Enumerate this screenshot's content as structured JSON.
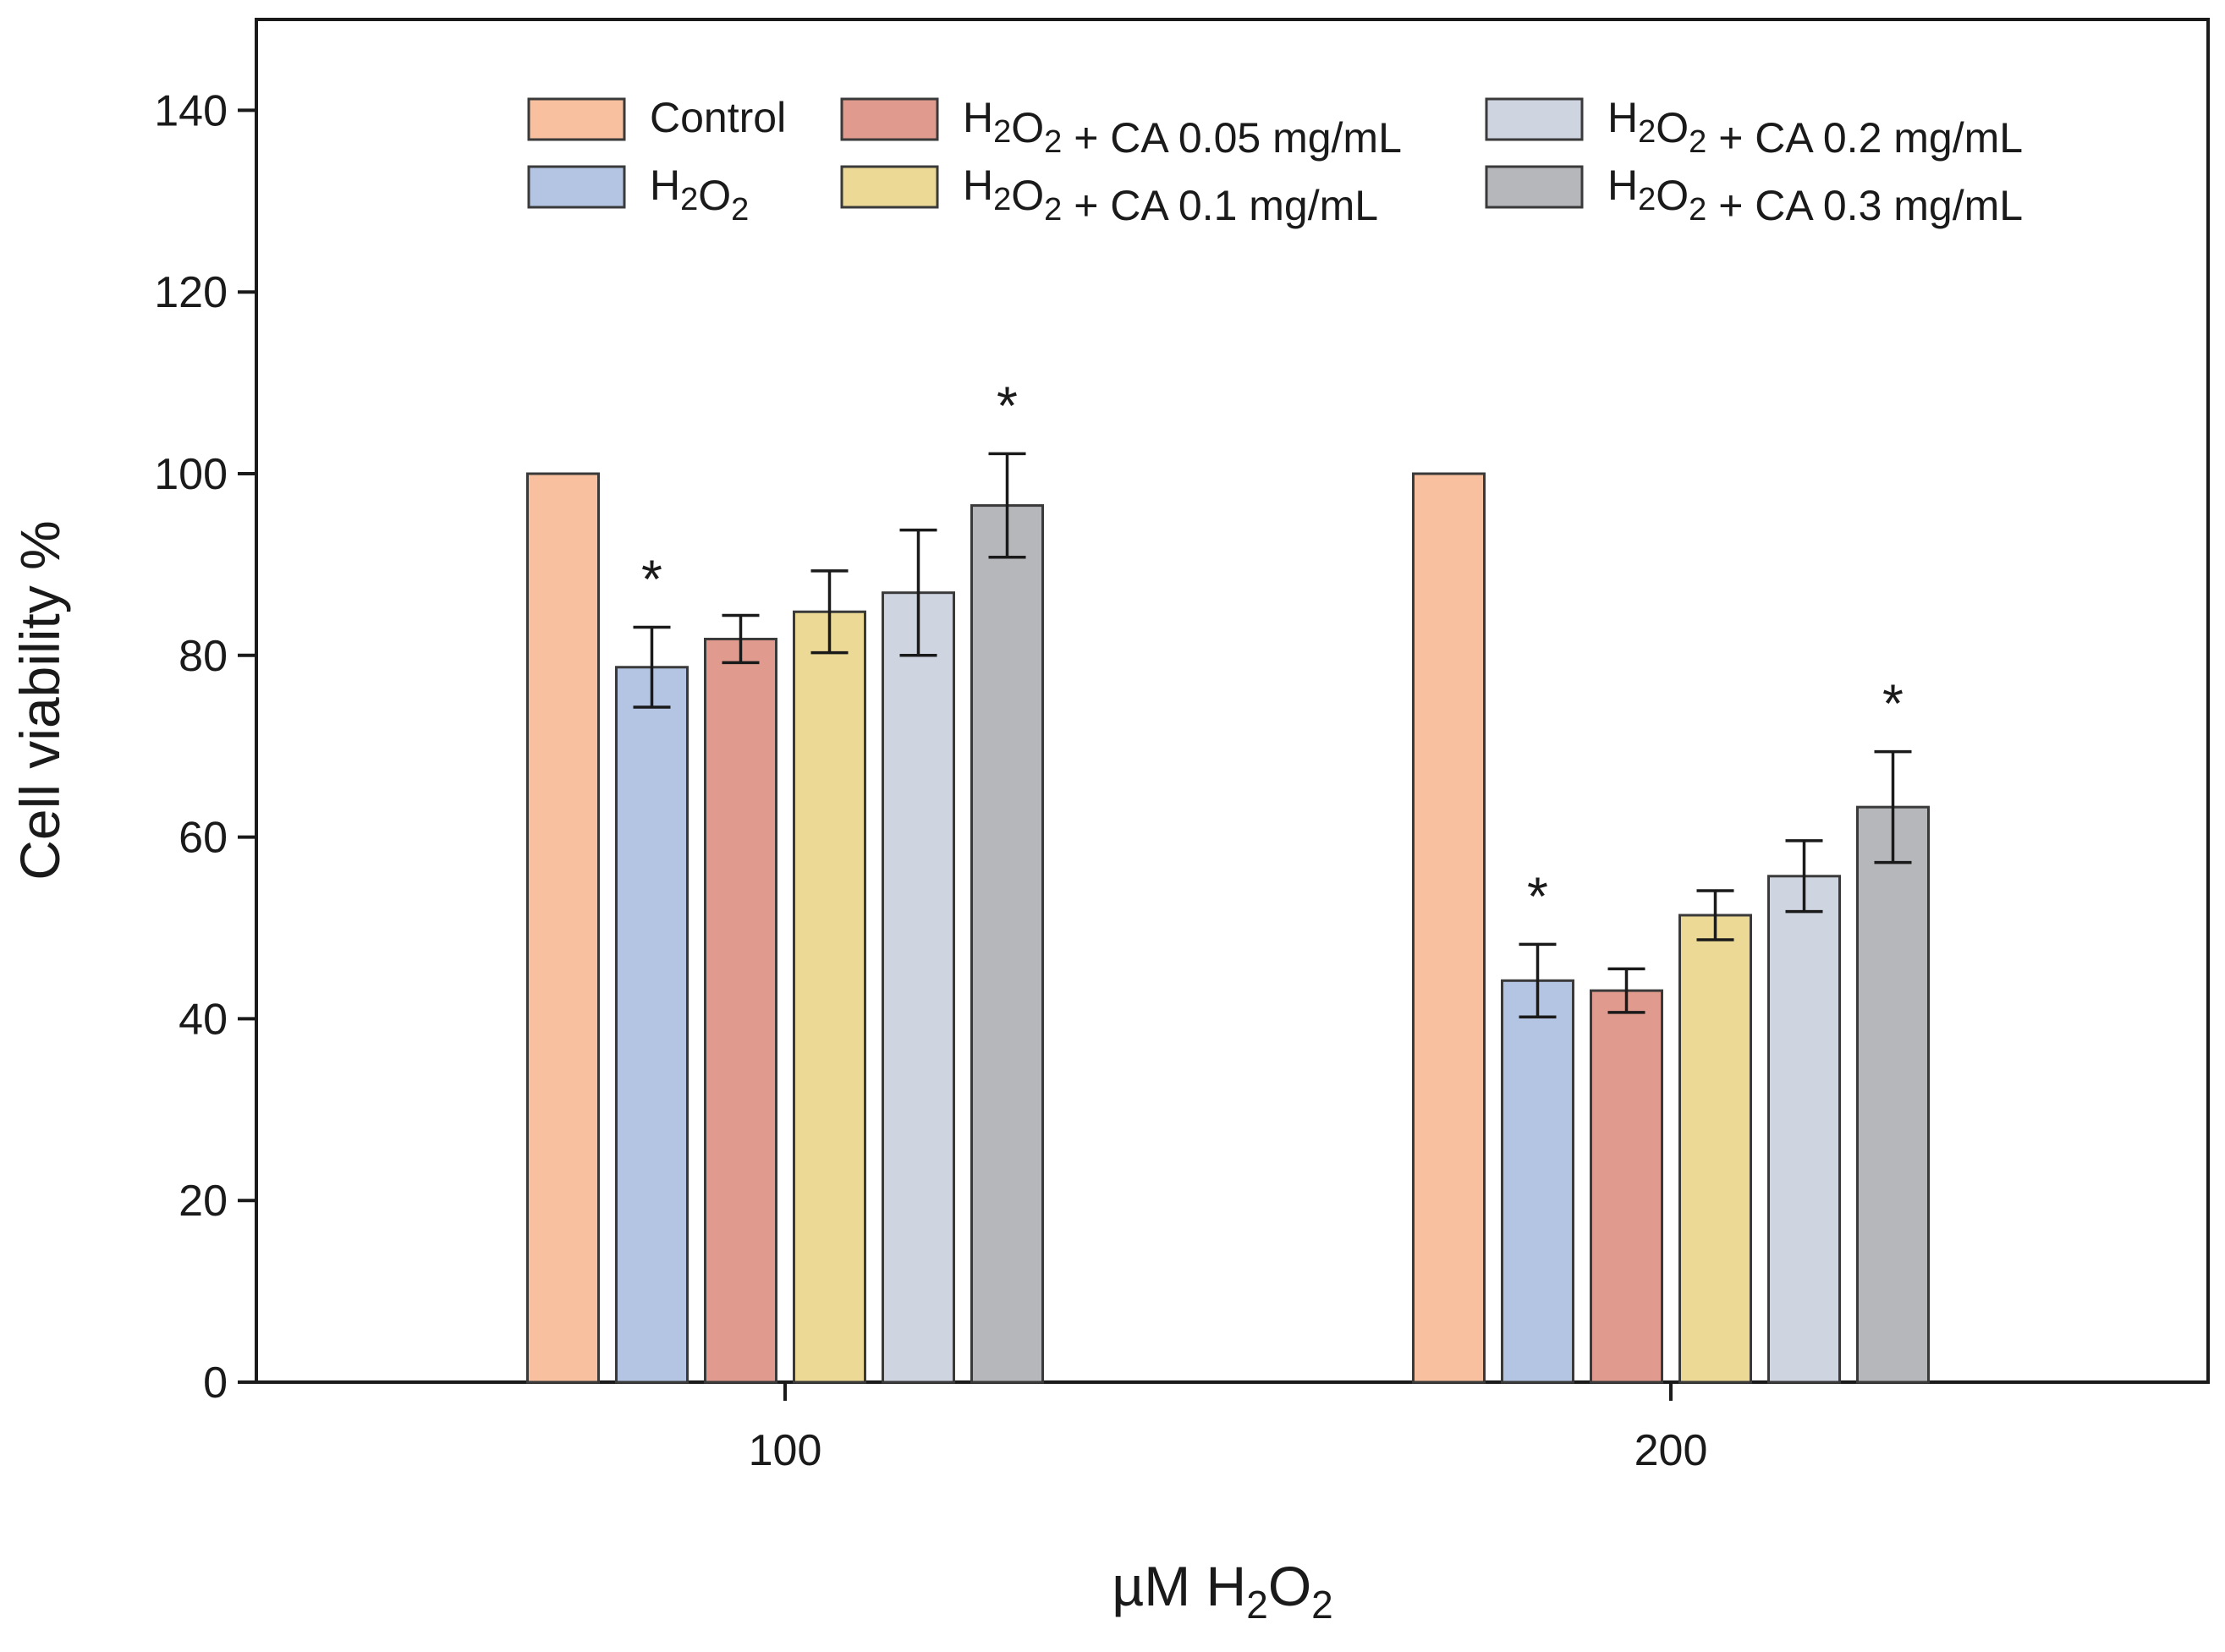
{
  "chart_data": {
    "type": "bar",
    "categories": [
      "100",
      "200"
    ],
    "xlabel": {
      "main": "µM H",
      "sub1": "2",
      "mid": "O",
      "sub2": "2"
    },
    "ylabel": "Cell viability %",
    "ylim": [
      0,
      150
    ],
    "yticks": [
      0,
      20,
      40,
      60,
      80,
      100,
      120,
      140
    ],
    "legend_position": "top",
    "significance_symbol": "*",
    "series": [
      {
        "key": "control",
        "name": "Control",
        "label_parts": [
          {
            "t": "Control"
          }
        ],
        "color": "#f8c09e",
        "values": [
          100,
          100
        ],
        "errors": [
          null,
          null
        ],
        "significant": [
          false,
          false
        ]
      },
      {
        "key": "h2o2",
        "name": "H2O2",
        "label_parts": [
          {
            "t": "H"
          },
          {
            "t": "2",
            "sub": true
          },
          {
            "t": "O"
          },
          {
            "t": "2",
            "sub": true
          }
        ],
        "color": "#b3c5e2",
        "values": [
          78.7,
          44.2
        ],
        "errors": [
          4.4,
          4.0
        ],
        "significant": [
          true,
          true
        ]
      },
      {
        "key": "ca005",
        "name": "H2O2 + CA 0.05 mg/mL",
        "label_parts": [
          {
            "t": "H"
          },
          {
            "t": "2",
            "sub": true
          },
          {
            "t": "O"
          },
          {
            "t": "2",
            "sub": true
          },
          {
            "t": " + CA 0.05 mg/mL"
          }
        ],
        "color": "#e09a8e",
        "values": [
          81.8,
          43.1
        ],
        "errors": [
          2.6,
          2.4
        ],
        "significant": [
          false,
          false
        ]
      },
      {
        "key": "ca01",
        "name": "H2O2 + CA 0.1 mg/mL",
        "label_parts": [
          {
            "t": "H"
          },
          {
            "t": "2",
            "sub": true
          },
          {
            "t": "O"
          },
          {
            "t": "2",
            "sub": true
          },
          {
            "t": " + CA 0.1 mg/mL"
          }
        ],
        "color": "#ecd995",
        "values": [
          84.8,
          51.4
        ],
        "errors": [
          4.5,
          2.7
        ],
        "significant": [
          false,
          false
        ]
      },
      {
        "key": "ca02",
        "name": "H2O2 + CA 0.2 mg/mL",
        "label_parts": [
          {
            "t": "H"
          },
          {
            "t": "2",
            "sub": true
          },
          {
            "t": "O"
          },
          {
            "t": "2",
            "sub": true
          },
          {
            "t": " + CA 0.2 mg/mL"
          }
        ],
        "color": "#ced4e0",
        "values": [
          86.9,
          55.7
        ],
        "errors": [
          6.9,
          3.9
        ],
        "significant": [
          false,
          false
        ]
      },
      {
        "key": "ca03",
        "name": "H2O2 + CA 0.3 mg/mL",
        "label_parts": [
          {
            "t": "H"
          },
          {
            "t": "2",
            "sub": true
          },
          {
            "t": "O"
          },
          {
            "t": "2",
            "sub": true
          },
          {
            "t": " + CA 0.3 mg/mL"
          }
        ],
        "color": "#b6b7bb",
        "values": [
          96.5,
          63.3
        ],
        "errors": [
          5.7,
          6.1
        ],
        "significant": [
          true,
          true
        ]
      }
    ]
  }
}
